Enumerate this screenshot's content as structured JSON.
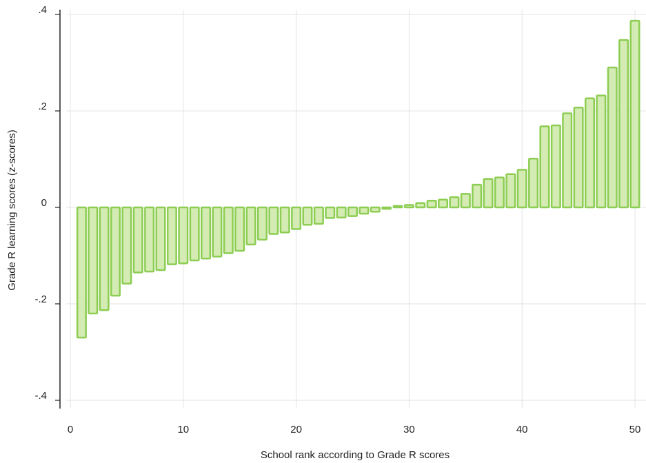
{
  "chart_data": {
    "type": "bar",
    "xlabel": "School rank according to Grade R scores",
    "ylabel": "Grade R learning scores (z-scores)",
    "x_ticks": [
      0,
      10,
      20,
      30,
      40,
      50
    ],
    "x_tick_labels": [
      "0",
      "10",
      "20",
      "30",
      "40",
      "50"
    ],
    "y_ticks": [
      -0.4,
      -0.2,
      0,
      0.2,
      0.4
    ],
    "y_tick_labels": [
      "-.4",
      "-.2",
      "0",
      ".2",
      ".4"
    ],
    "xlim": [
      -1,
      51
    ],
    "ylim": [
      -0.4,
      0.4
    ],
    "grid": true,
    "colors": {
      "bar_fill": "#d4ecb4",
      "bar_stroke": "#8ccd52",
      "grid": "#e3e3e3",
      "axis": "#222222"
    },
    "x": [
      1,
      2,
      3,
      4,
      5,
      6,
      7,
      8,
      9,
      10,
      11,
      12,
      13,
      14,
      15,
      16,
      17,
      18,
      19,
      20,
      21,
      22,
      23,
      24,
      25,
      26,
      27,
      28,
      29,
      30,
      31,
      32,
      33,
      34,
      35,
      36,
      37,
      38,
      39,
      40,
      41,
      42,
      43,
      44,
      45,
      46,
      47,
      48,
      49,
      50
    ],
    "values": [
      -0.27,
      -0.22,
      -0.213,
      -0.183,
      -0.158,
      -0.135,
      -0.133,
      -0.13,
      -0.118,
      -0.116,
      -0.11,
      -0.106,
      -0.102,
      -0.095,
      -0.09,
      -0.077,
      -0.067,
      -0.055,
      -0.052,
      -0.045,
      -0.036,
      -0.034,
      -0.022,
      -0.021,
      -0.018,
      -0.013,
      -0.009,
      -0.003,
      0.003,
      0.005,
      0.009,
      0.014,
      0.016,
      0.021,
      0.028,
      0.047,
      0.059,
      0.062,
      0.069,
      0.078,
      0.101,
      0.168,
      0.17,
      0.195,
      0.207,
      0.226,
      0.232,
      0.29,
      0.347,
      0.387
    ]
  }
}
